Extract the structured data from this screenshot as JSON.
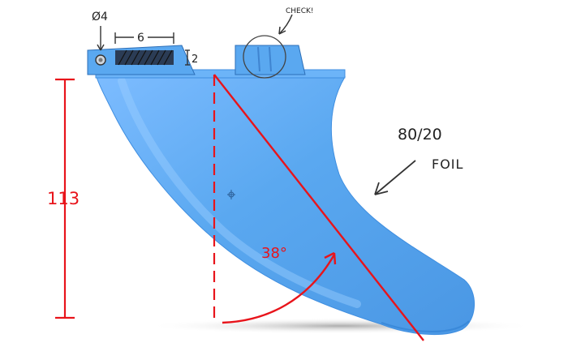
{
  "annotations": {
    "diameter": "Ø4",
    "tab_width": "6",
    "tab_height": "2",
    "check_note": "CHECK!",
    "foil_ratio": "80/20",
    "foil_word": "FOIL",
    "fin_height": "113",
    "rake_angle": "38°"
  },
  "colors": {
    "fin_body": "#5aa8f0",
    "fin_shadow": "#3d86d6",
    "fin_highlight": "#8fc6ff",
    "red_ink": "#e8141b",
    "pencil_ink": "#222222"
  }
}
